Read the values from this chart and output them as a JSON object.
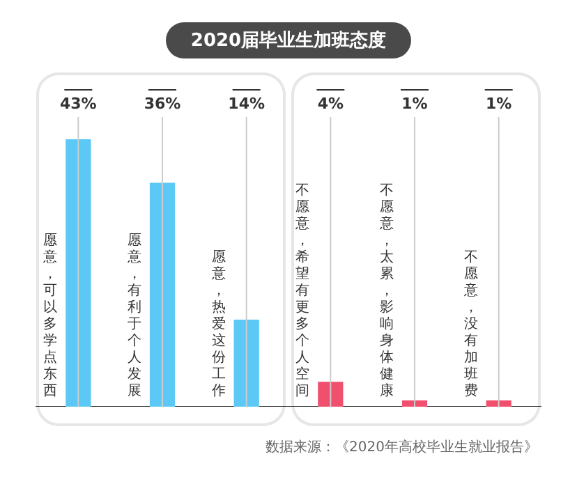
{
  "chart_data": {
    "type": "bar",
    "title": "2020届毕业生加班态度",
    "categories": [
      "愿意，可以多学点东西",
      "愿意，有利于个人发展",
      "愿意，热爱这份工作",
      "不愿意，希望有更多个人空间",
      "不愿意，太累，影响身体健康",
      "不愿意，没有加班费"
    ],
    "values": [
      43,
      36,
      14,
      4,
      1,
      1
    ],
    "colors": [
      "#5bc8f5",
      "#5bc8f5",
      "#5bc8f5",
      "#f0506e",
      "#f0506e",
      "#f0506e"
    ],
    "value_labels": [
      "43%",
      "36%",
      "14%",
      "4%",
      "1%",
      "1%"
    ],
    "grid": "x",
    "annotations": [
      "数据来源：《2020年高校毕业生就业报告》"
    ]
  }
}
